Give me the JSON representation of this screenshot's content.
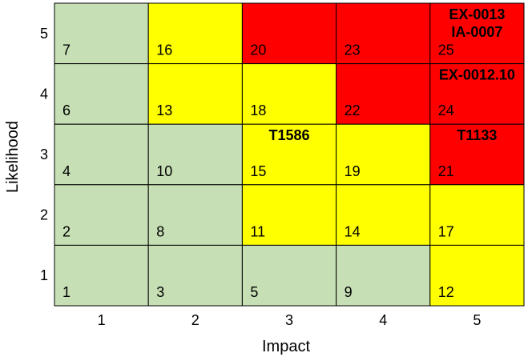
{
  "colors": {
    "green": "#c6dfb4",
    "yellow": "#ffff00",
    "red": "#ff0000",
    "grid": "#000000"
  },
  "chart_data": {
    "type": "heatmap",
    "title": "",
    "xlabel": "Impact",
    "ylabel": "Likelihood",
    "x_ticks": [
      "1",
      "2",
      "3",
      "4",
      "5"
    ],
    "y_ticks": [
      "1",
      "2",
      "3",
      "4",
      "5"
    ],
    "grid": true,
    "cells": [
      {
        "impact": 1,
        "likelihood": 5,
        "score": "7",
        "color": "green"
      },
      {
        "impact": 2,
        "likelihood": 5,
        "score": "16",
        "color": "yellow"
      },
      {
        "impact": 3,
        "likelihood": 5,
        "score": "20",
        "color": "red"
      },
      {
        "impact": 4,
        "likelihood": 5,
        "score": "23",
        "color": "red"
      },
      {
        "impact": 5,
        "likelihood": 5,
        "score": "25",
        "color": "red",
        "labels": [
          "EX-0013",
          "IA-0007"
        ]
      },
      {
        "impact": 1,
        "likelihood": 4,
        "score": "6",
        "color": "green"
      },
      {
        "impact": 2,
        "likelihood": 4,
        "score": "13",
        "color": "yellow"
      },
      {
        "impact": 3,
        "likelihood": 4,
        "score": "18",
        "color": "yellow"
      },
      {
        "impact": 4,
        "likelihood": 4,
        "score": "22",
        "color": "red"
      },
      {
        "impact": 5,
        "likelihood": 4,
        "score": "24",
        "color": "red",
        "labels": [
          "EX-0012.10"
        ]
      },
      {
        "impact": 1,
        "likelihood": 3,
        "score": "4",
        "color": "green"
      },
      {
        "impact": 2,
        "likelihood": 3,
        "score": "10",
        "color": "green"
      },
      {
        "impact": 3,
        "likelihood": 3,
        "score": "15",
        "color": "yellow",
        "labels": [
          "T1586"
        ]
      },
      {
        "impact": 4,
        "likelihood": 3,
        "score": "19",
        "color": "yellow"
      },
      {
        "impact": 5,
        "likelihood": 3,
        "score": "21",
        "color": "red",
        "labels": [
          "T1133"
        ]
      },
      {
        "impact": 1,
        "likelihood": 2,
        "score": "2",
        "color": "green"
      },
      {
        "impact": 2,
        "likelihood": 2,
        "score": "8",
        "color": "green"
      },
      {
        "impact": 3,
        "likelihood": 2,
        "score": "11",
        "color": "yellow"
      },
      {
        "impact": 4,
        "likelihood": 2,
        "score": "14",
        "color": "yellow"
      },
      {
        "impact": 5,
        "likelihood": 2,
        "score": "17",
        "color": "yellow"
      },
      {
        "impact": 1,
        "likelihood": 1,
        "score": "1",
        "color": "green"
      },
      {
        "impact": 2,
        "likelihood": 1,
        "score": "3",
        "color": "green"
      },
      {
        "impact": 3,
        "likelihood": 1,
        "score": "5",
        "color": "green"
      },
      {
        "impact": 4,
        "likelihood": 1,
        "score": "9",
        "color": "green"
      },
      {
        "impact": 5,
        "likelihood": 1,
        "score": "12",
        "color": "yellow"
      }
    ]
  }
}
